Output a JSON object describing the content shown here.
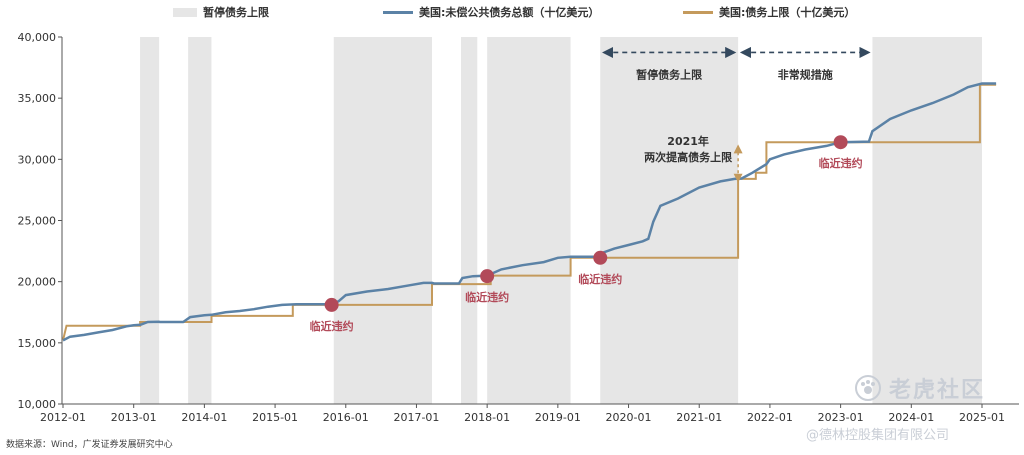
{
  "chart_data": {
    "type": "line",
    "legend": {
      "suspension": "暂停债务上限",
      "debt": "美国:未偿公共债务总额（十亿美元）",
      "ceiling": "美国:债务上限（十亿美元）"
    },
    "ylim": [
      10000,
      40000
    ],
    "y_ticks": [
      {
        "value": 10000,
        "label": "10,000"
      },
      {
        "value": 15000,
        "label": "15,000"
      },
      {
        "value": 20000,
        "label": "20,000"
      },
      {
        "value": 25000,
        "label": "25,000"
      },
      {
        "value": 30000,
        "label": "30,000"
      },
      {
        "value": 35000,
        "label": "35,000"
      },
      {
        "value": 40000,
        "label": "40,000"
      }
    ],
    "xlim": [
      2012.0,
      2025.2
    ],
    "x_ticks": [
      {
        "value": 2012,
        "label": "2012-01"
      },
      {
        "value": 2013,
        "label": "2013-01"
      },
      {
        "value": 2014,
        "label": "2014-01"
      },
      {
        "value": 2015,
        "label": "2015-01"
      },
      {
        "value": 2016,
        "label": "2016-01"
      },
      {
        "value": 2017,
        "label": "2017-01"
      },
      {
        "value": 2018,
        "label": "2018-01"
      },
      {
        "value": 2019,
        "label": "2019-01"
      },
      {
        "value": 2020,
        "label": "2020-01"
      },
      {
        "value": 2021,
        "label": "2021-01"
      },
      {
        "value": 2022,
        "label": "2022-01"
      },
      {
        "value": 2023,
        "label": "2023-01"
      },
      {
        "value": 2024,
        "label": "2024-01"
      },
      {
        "value": 2025,
        "label": "2025-01"
      }
    ],
    "suspension_periods": [
      [
        2013.09,
        2013.36
      ],
      [
        2013.77,
        2014.1
      ],
      [
        2015.83,
        2017.22
      ],
      [
        2017.63,
        2017.86
      ],
      [
        2018.0,
        2019.18
      ],
      [
        2019.6,
        2021.55
      ],
      [
        2023.45,
        2025.0
      ]
    ],
    "debt_series": {
      "name": "美国:未偿公共债务总额（十亿美元）",
      "color": "#5b82a6",
      "points": [
        [
          2012.0,
          15200
        ],
        [
          2012.1,
          15500
        ],
        [
          2012.3,
          15650
        ],
        [
          2012.5,
          15850
        ],
        [
          2012.7,
          16050
        ],
        [
          2012.9,
          16350
        ],
        [
          2013.0,
          16430
        ],
        [
          2013.1,
          16480
        ],
        [
          2013.2,
          16700
        ],
        [
          2013.36,
          16730
        ],
        [
          2013.37,
          16700
        ],
        [
          2013.7,
          16700
        ],
        [
          2013.8,
          17100
        ],
        [
          2014.0,
          17250
        ],
        [
          2014.1,
          17290
        ],
        [
          2014.3,
          17500
        ],
        [
          2014.5,
          17600
        ],
        [
          2014.7,
          17750
        ],
        [
          2014.9,
          17950
        ],
        [
          2015.1,
          18100
        ],
        [
          2015.3,
          18150
        ],
        [
          2015.6,
          18150
        ],
        [
          2015.8,
          18150
        ],
        [
          2015.9,
          18400
        ],
        [
          2016.0,
          18900
        ],
        [
          2016.3,
          19200
        ],
        [
          2016.6,
          19400
        ],
        [
          2016.9,
          19700
        ],
        [
          2017.1,
          19900
        ],
        [
          2017.22,
          19900
        ],
        [
          2017.25,
          19850
        ],
        [
          2017.6,
          19850
        ],
        [
          2017.65,
          20300
        ],
        [
          2017.8,
          20450
        ],
        [
          2018.0,
          20500
        ],
        [
          2018.2,
          21000
        ],
        [
          2018.5,
          21350
        ],
        [
          2018.8,
          21600
        ],
        [
          2019.0,
          21950
        ],
        [
          2019.18,
          22030
        ],
        [
          2019.3,
          22030
        ],
        [
          2019.59,
          22030
        ],
        [
          2019.65,
          22400
        ],
        [
          2019.8,
          22700
        ],
        [
          2020.0,
          23000
        ],
        [
          2020.2,
          23300
        ],
        [
          2020.28,
          23500
        ],
        [
          2020.35,
          24900
        ],
        [
          2020.45,
          26200
        ],
        [
          2020.7,
          26800
        ],
        [
          2021.0,
          27700
        ],
        [
          2021.3,
          28200
        ],
        [
          2021.5,
          28400
        ],
        [
          2021.6,
          28430
        ],
        [
          2021.75,
          28900
        ],
        [
          2021.95,
          29600
        ],
        [
          2022.0,
          30000
        ],
        [
          2022.2,
          30400
        ],
        [
          2022.5,
          30800
        ],
        [
          2022.8,
          31100
        ],
        [
          2023.0,
          31400
        ],
        [
          2023.4,
          31450
        ],
        [
          2023.45,
          32300
        ],
        [
          2023.7,
          33300
        ],
        [
          2024.0,
          34000
        ],
        [
          2024.3,
          34600
        ],
        [
          2024.6,
          35300
        ],
        [
          2024.8,
          35900
        ],
        [
          2025.0,
          36200
        ],
        [
          2025.2,
          36200
        ]
      ]
    },
    "ceiling_series": {
      "name": "美国:债务上限（十亿美元）",
      "color": "#c49a5c",
      "points": [
        [
          2012.0,
          15200
        ],
        [
          2012.05,
          16400
        ],
        [
          2013.09,
          16400
        ],
        [
          2013.09,
          16700
        ],
        [
          2014.1,
          16700
        ],
        [
          2014.1,
          17200
        ],
        [
          2015.25,
          17200
        ],
        [
          2015.25,
          18100
        ],
        [
          2017.22,
          18100
        ],
        [
          2017.22,
          19800
        ],
        [
          2018.05,
          19800
        ],
        [
          2018.05,
          20500
        ],
        [
          2019.18,
          20500
        ],
        [
          2019.18,
          21950
        ],
        [
          2021.55,
          21950
        ],
        [
          2021.55,
          28400
        ],
        [
          2021.8,
          28400
        ],
        [
          2021.8,
          28900
        ],
        [
          2021.95,
          28900
        ],
        [
          2021.95,
          31400
        ],
        [
          2024.0,
          31400
        ],
        [
          2024.0,
          31400
        ],
        [
          2024.97,
          31400
        ],
        [
          2024.97,
          36100
        ],
        [
          2025.2,
          36100
        ]
      ]
    },
    "default_markers": [
      {
        "x": 2015.8,
        "y": 18100,
        "label": "临近违约"
      },
      {
        "x": 2018.0,
        "y": 20450,
        "label": "临近违约"
      },
      {
        "x": 2019.6,
        "y": 21950,
        "label": "临近违约"
      },
      {
        "x": 2023.0,
        "y": 31400,
        "label": "临近违约"
      }
    ],
    "marker_color": "#b24a59",
    "annotations": {
      "suspend_label": "暂停债务上限",
      "suspend_range": [
        2019.6,
        2021.55
      ],
      "extraordinary_label": "非常规措施",
      "extraordinary_range": [
        2021.55,
        2023.45
      ],
      "raise_line1": "2021年",
      "raise_line2": "两次提高债务上限",
      "raise_arrow_x": 2021.55,
      "raise_arrow_range": [
        28400,
        31400
      ],
      "annotation_y": 38000
    }
  },
  "source_text": "数据来源：Wind，广发证券发展研究中心",
  "watermark": {
    "brand": "老虎社区",
    "sub": "@德林控股集团有限公司"
  }
}
